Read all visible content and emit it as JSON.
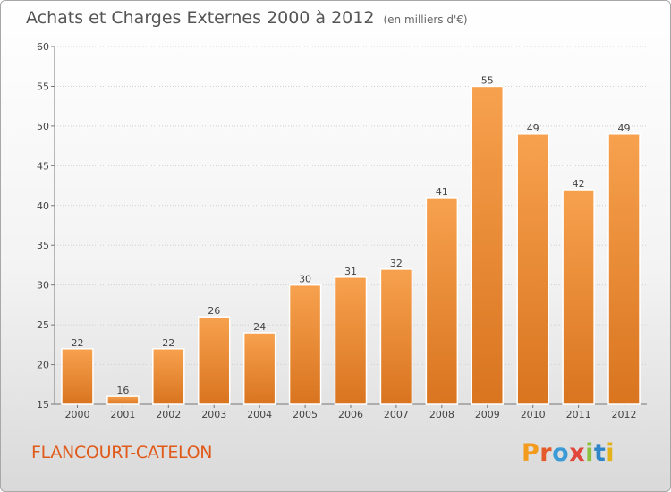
{
  "header": {
    "title": "Achats et Charges Externes 2000 à 2012",
    "subtitle": "(en milliers d'€)"
  },
  "footer": {
    "commune": "FLANCOURT-CATELON",
    "logo": "Proxiti"
  },
  "colors": {
    "bar_top": "#f7a14e",
    "bar_bottom": "#d9741f",
    "grid": "#d0d0d0",
    "logo_letters": [
      "#f29b1d",
      "#e45a2a",
      "#3c9ad6",
      "#e0463a",
      "#8bc13f",
      "#2e86c8",
      "#e3b21a"
    ]
  },
  "chart_data": {
    "type": "bar",
    "title": "Achats et Charges Externes 2000 à 2012",
    "subtitle": "(en milliers d'€)",
    "categories": [
      "2000",
      "2001",
      "2002",
      "2003",
      "2004",
      "2005",
      "2006",
      "2007",
      "2008",
      "2009",
      "2010",
      "2011",
      "2012"
    ],
    "values": [
      22,
      16,
      22,
      26,
      24,
      30,
      31,
      32,
      41,
      55,
      49,
      42,
      49
    ],
    "ylim": [
      15,
      60
    ],
    "yticks": [
      15,
      20,
      25,
      30,
      35,
      40,
      45,
      50,
      55,
      60
    ],
    "grid": true,
    "data_labels": true
  }
}
